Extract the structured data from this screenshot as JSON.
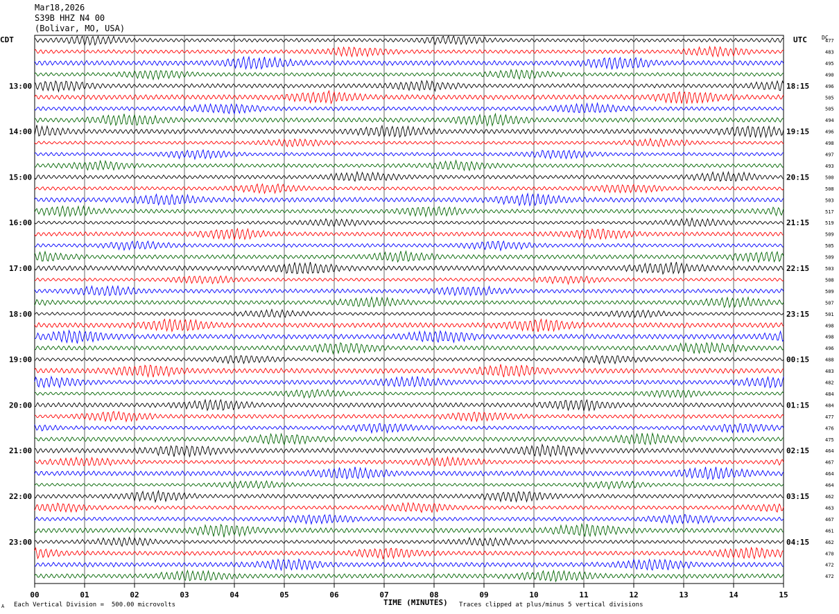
{
  "header": {
    "date": "Mar18,2026",
    "station": "S39B HHZ N4 00",
    "location": "(Bolivar, MO, USA)"
  },
  "left_axis_label": "CDT",
  "right_axis_label": "UTC",
  "dc_label": "DC",
  "footer": {
    "corner_mark": "A",
    "scale_note": "Each Vertical Division =  500.00 microvolts",
    "clip_note": "Traces clipped at plus/minus 5 vertical divisions"
  },
  "chart_data": {
    "type": "line",
    "title": "S39B HHZ N4 00",
    "xlabel": "TIME (MINUTES)",
    "ylabel": "",
    "x_ticks": [
      "00",
      "01",
      "02",
      "03",
      "04",
      "05",
      "06",
      "07",
      "08",
      "09",
      "10",
      "11",
      "12",
      "13",
      "14",
      "15"
    ],
    "xlim": [
      0,
      15
    ],
    "grid": true,
    "rows_count": 48,
    "trace_colors": [
      "#000000",
      "#ff0000",
      "#0000ff",
      "#006400"
    ],
    "left_time_labels": [
      "13:00",
      "14:00",
      "15:00",
      "16:00",
      "17:00",
      "18:00",
      "19:00",
      "20:00",
      "21:00",
      "22:00",
      "23:00"
    ],
    "right_time_labels": [
      "18:15",
      "19:15",
      "20:15",
      "21:15",
      "22:15",
      "23:15",
      "00:15",
      "01:15",
      "02:15",
      "03:15",
      "04:15"
    ],
    "dc_offsets": [
      477,
      483,
      495,
      490,
      496,
      505,
      505,
      494,
      496,
      498,
      497,
      493,
      500,
      508,
      503,
      517,
      519,
      509,
      505,
      509,
      503,
      508,
      509,
      507,
      501,
      498,
      498,
      496,
      488,
      483,
      482,
      484,
      484,
      477,
      476,
      475,
      464,
      467,
      464,
      464,
      462,
      463,
      467,
      461,
      462,
      470,
      472,
      472
    ]
  }
}
